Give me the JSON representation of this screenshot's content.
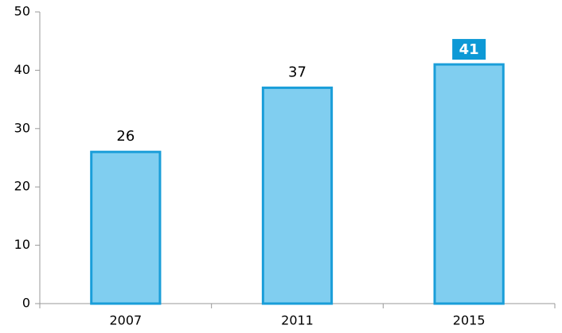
{
  "chart_data": {
    "type": "bar",
    "categories": [
      "2007",
      "2011",
      "2015"
    ],
    "values": [
      26,
      37,
      41
    ],
    "color": "#80cef0",
    "edge_color": "#1a9ed9",
    "highlight_category": "2015",
    "highlight_color": "#0d99d6",
    "ylim": [
      0,
      50
    ],
    "yticks": [
      0,
      10,
      20,
      30,
      40,
      50
    ],
    "grid": false
  }
}
